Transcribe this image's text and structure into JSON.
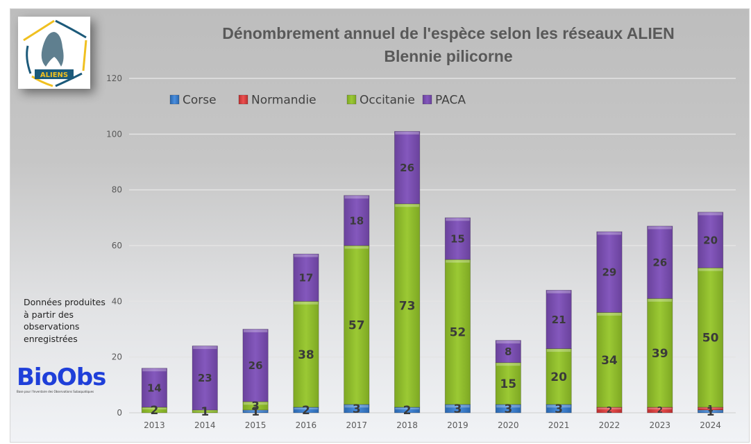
{
  "logo": {
    "label": "ALIENS"
  },
  "note": {
    "text": "Données produites à partir des observations enregistrées"
  },
  "biobs": {
    "word": "BioObs",
    "subtitle": "Base pour l'Inventaire des Observations Subaquatiques"
  },
  "chart_data": {
    "type": "bar",
    "stacked": true,
    "title": "Dénombrement annuel de l'espèce selon les réseaux ALIEN",
    "subtitle": "Blennie pilicorne",
    "xlabel": "",
    "ylabel": "",
    "ylim": [
      0,
      120
    ],
    "yticks": [
      0,
      20,
      40,
      60,
      80,
      100,
      120
    ],
    "grid": true,
    "legend_position": "top-left",
    "categories": [
      "2013",
      "2014",
      "2015",
      "2016",
      "2017",
      "2018",
      "2019",
      "2020",
      "2021",
      "2022",
      "2023",
      "2024"
    ],
    "series": [
      {
        "name": "Corse",
        "color": "#2f75c6",
        "values": [
          0,
          0,
          1,
          2,
          3,
          2,
          3,
          3,
          3,
          0,
          0,
          1
        ]
      },
      {
        "name": "Normandie",
        "color": "#d63a3a",
        "values": [
          0,
          0,
          0,
          0,
          0,
          0,
          0,
          0,
          0,
          2,
          2,
          1
        ]
      },
      {
        "name": "Occitanie",
        "color": "#8fbc2a",
        "values": [
          2,
          1,
          3,
          38,
          57,
          73,
          52,
          15,
          20,
          34,
          39,
          50
        ]
      },
      {
        "name": "PACA",
        "color": "#7a4fb0",
        "values": [
          14,
          23,
          26,
          17,
          18,
          26,
          15,
          8,
          21,
          29,
          26,
          20
        ]
      }
    ]
  }
}
